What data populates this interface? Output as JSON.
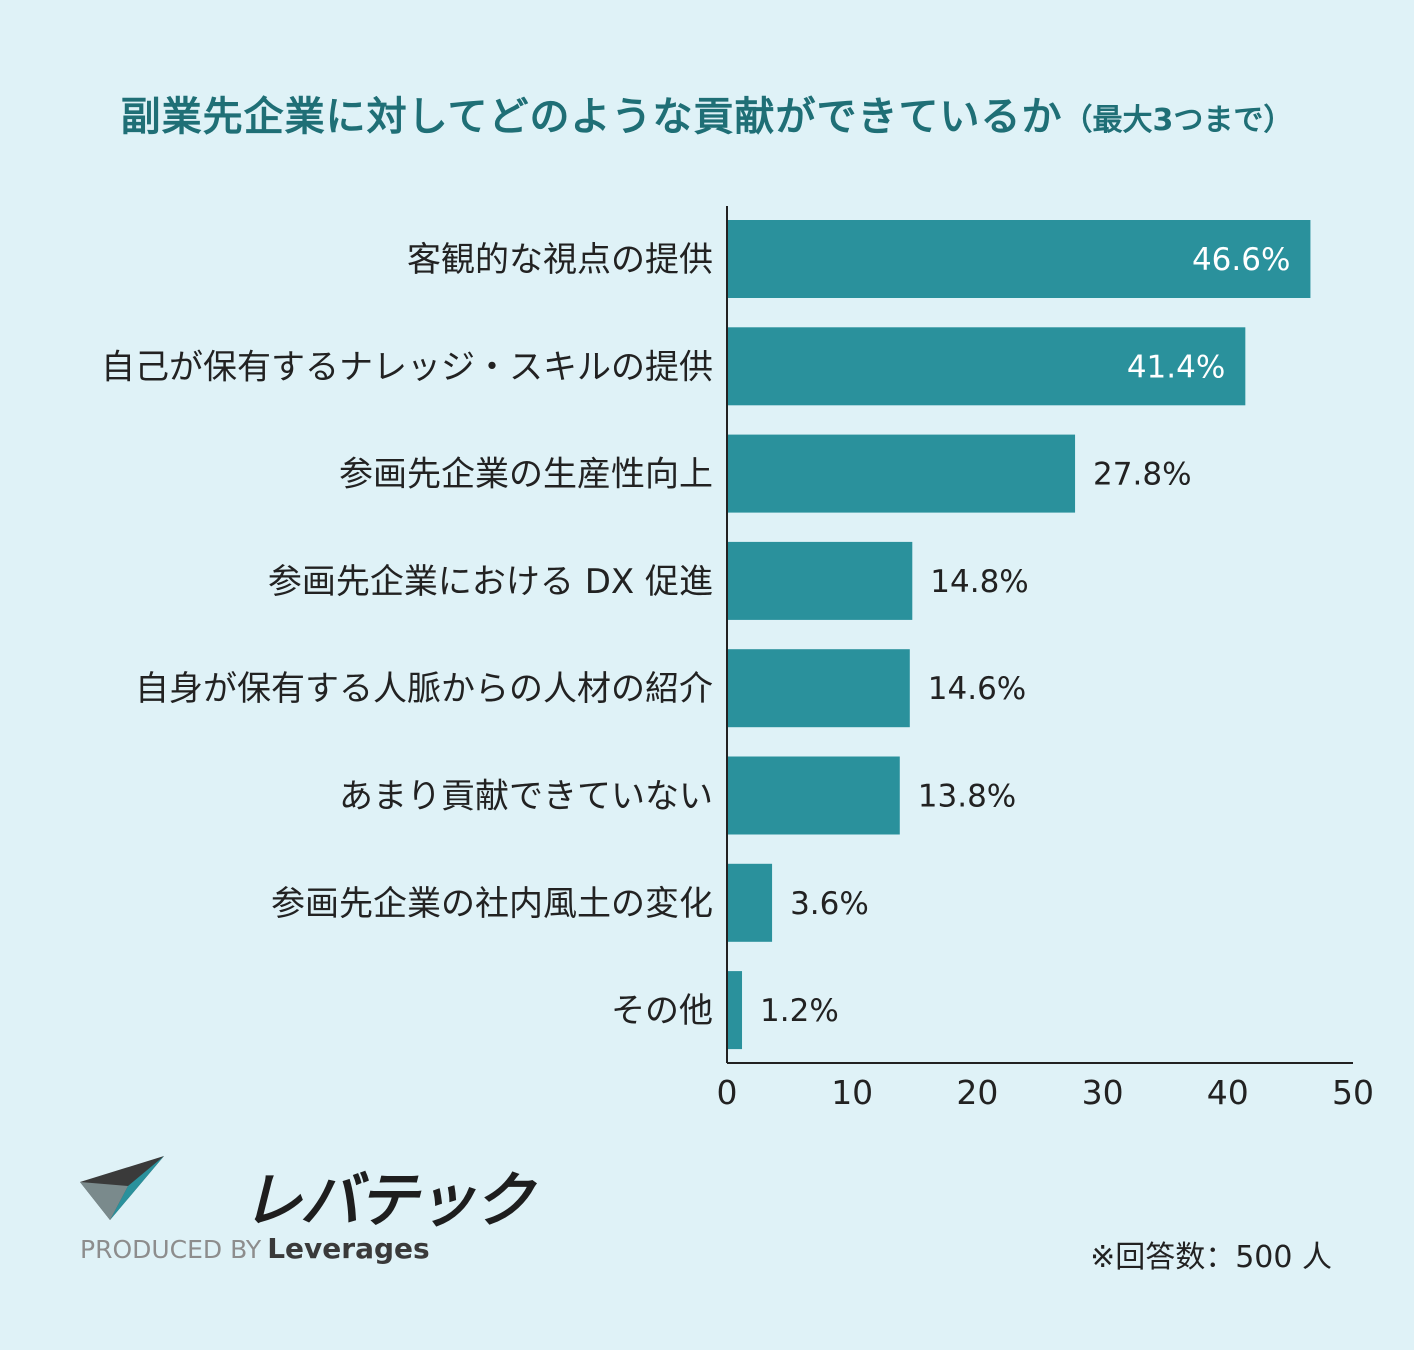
{
  "title": {
    "main": "副業先企業に対してどのような貢献ができているか",
    "sub": "（最大3つまで）"
  },
  "chart_data": {
    "type": "bar",
    "orientation": "horizontal",
    "title": "副業先企業に対してどのような貢献ができているか（最大3つまで）",
    "categories": [
      "客観的な視点の提供",
      "自己が保有するナレッジ・スキルの提供",
      "参画先企業の生産性向上",
      "参画先企業における DX 促進",
      "自身が保有する人脈からの人材の紹介",
      "あまり貢献できていない",
      "参画先企業の社内風土の変化",
      "その他"
    ],
    "values": [
      46.6,
      41.4,
      27.8,
      14.8,
      14.6,
      13.8,
      3.6,
      1.2
    ],
    "value_labels": [
      "46.6%",
      "41.4%",
      "27.8%",
      "14.8%",
      "14.6%",
      "13.8%",
      "3.6%",
      "1.2%"
    ],
    "xlim": [
      0,
      50
    ],
    "xticks": [
      "0",
      "10",
      "20",
      "30",
      "40",
      "50"
    ],
    "grid": false,
    "bar_color": "#2a919c"
  },
  "logo": {
    "name": "レバテック",
    "produced_by": "PRODUCED BY",
    "brand": "Leverages"
  },
  "note": "※回答数：500 人",
  "colors": {
    "background": "#dff2f7",
    "title": "#1f6f76",
    "bar": "#2a919c",
    "logo_dark": "#3a3a3a",
    "logo_teal": "#2a919c"
  }
}
